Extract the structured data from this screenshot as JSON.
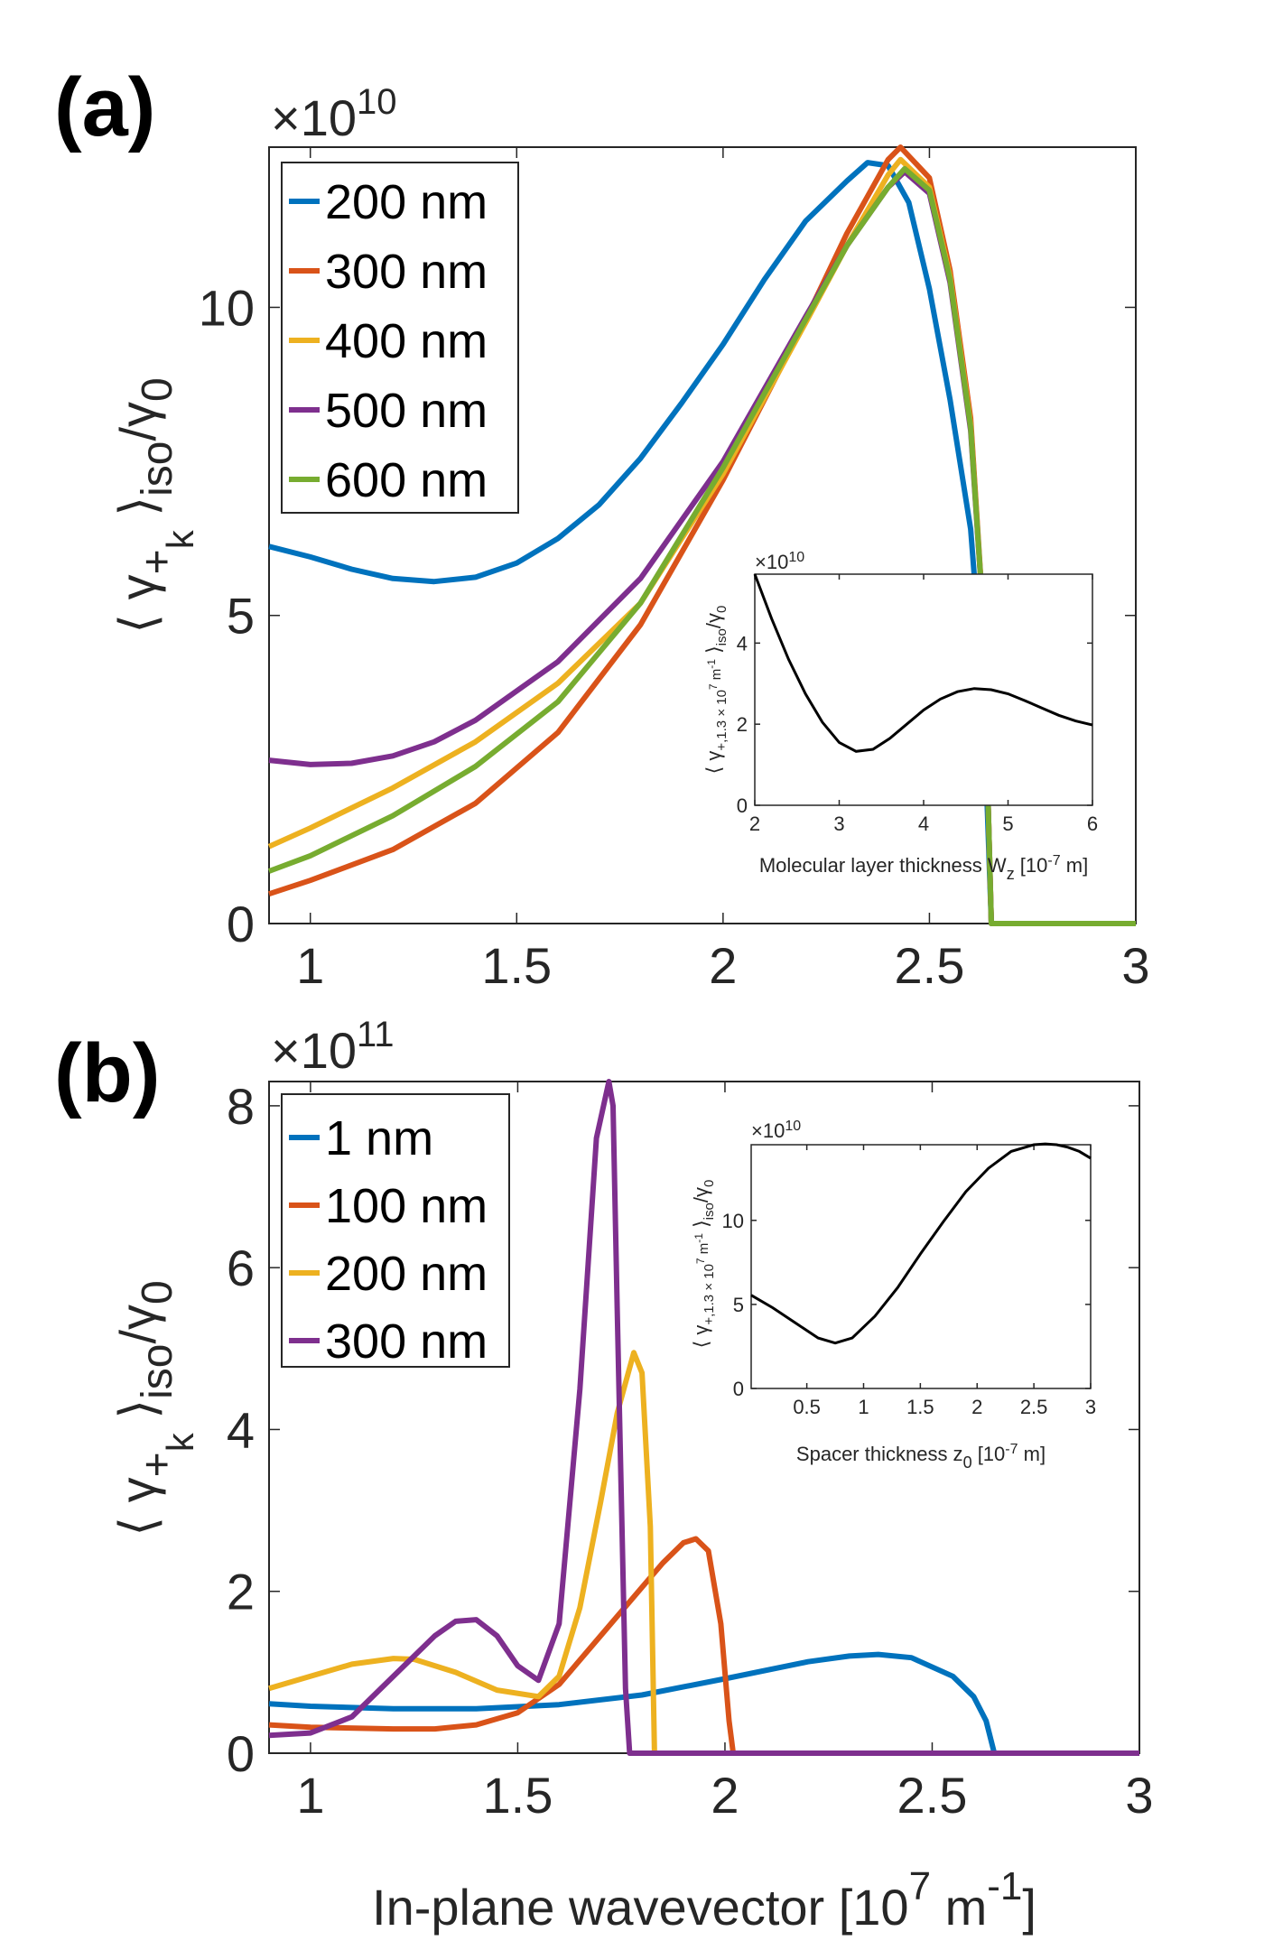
{
  "xlabel": "In-plane wavevector [10^7 m^-1]",
  "chart_data": [
    {
      "panel": "(a)",
      "type": "line",
      "ylabel": "⟨γ+k⟩iso/γ0",
      "y_exponent": "×10^10",
      "xlim": [
        0.9,
        3.0
      ],
      "ylim": [
        0,
        12.6
      ],
      "xticks": [
        "1",
        "1.5",
        "2",
        "2.5",
        "3"
      ],
      "yticks": [
        "0",
        "5",
        "10"
      ],
      "legend_position": "top-left",
      "series": [
        {
          "name": "200 nm",
          "color": "#0072BD",
          "x": [
            0.9,
            1.0,
            1.1,
            1.2,
            1.3,
            1.4,
            1.5,
            1.6,
            1.7,
            1.8,
            1.9,
            2.0,
            2.1,
            2.2,
            2.3,
            2.35,
            2.4,
            2.45,
            2.5,
            2.55,
            2.6,
            2.63,
            2.65,
            3.0
          ],
          "y": [
            6.12,
            5.95,
            5.75,
            5.6,
            5.55,
            5.62,
            5.85,
            6.25,
            6.8,
            7.55,
            8.45,
            9.4,
            10.45,
            11.4,
            12.05,
            12.35,
            12.3,
            11.7,
            10.3,
            8.5,
            6.4,
            3.8,
            0.0,
            0.0
          ]
        },
        {
          "name": "300 nm",
          "color": "#D95319",
          "x": [
            0.9,
            1.0,
            1.2,
            1.4,
            1.6,
            1.8,
            2.0,
            2.2,
            2.3,
            2.4,
            2.43,
            2.5,
            2.55,
            2.6,
            2.63,
            2.65,
            3.0
          ],
          "y": [
            0.48,
            0.7,
            1.2,
            1.95,
            3.1,
            4.85,
            7.2,
            9.8,
            11.2,
            12.4,
            12.6,
            12.1,
            10.6,
            8.2,
            5.0,
            0.0,
            0.0
          ]
        },
        {
          "name": "400 nm",
          "color": "#EDB120",
          "x": [
            0.9,
            1.0,
            1.2,
            1.4,
            1.6,
            1.8,
            2.0,
            2.2,
            2.3,
            2.4,
            2.43,
            2.5,
            2.55,
            2.6,
            2.63,
            2.65,
            3.0
          ],
          "y": [
            1.25,
            1.55,
            2.2,
            2.95,
            3.9,
            5.2,
            7.3,
            9.75,
            11.0,
            12.15,
            12.4,
            11.95,
            10.5,
            8.1,
            5.0,
            0.0,
            0.0
          ]
        },
        {
          "name": "500 nm",
          "color": "#7E2F8E",
          "x": [
            0.9,
            1.0,
            1.1,
            1.2,
            1.3,
            1.4,
            1.6,
            1.8,
            2.0,
            2.2,
            2.3,
            2.4,
            2.44,
            2.5,
            2.55,
            2.6,
            2.63,
            2.65,
            3.0
          ],
          "y": [
            2.65,
            2.58,
            2.6,
            2.72,
            2.95,
            3.3,
            4.25,
            5.6,
            7.5,
            9.85,
            11.0,
            11.95,
            12.2,
            11.85,
            10.4,
            8.0,
            5.0,
            0.0,
            0.0
          ]
        },
        {
          "name": "600 nm",
          "color": "#77AC30",
          "x": [
            0.9,
            1.0,
            1.2,
            1.4,
            1.6,
            1.8,
            2.0,
            2.2,
            2.3,
            2.4,
            2.44,
            2.5,
            2.55,
            2.6,
            2.63,
            2.65,
            3.0
          ],
          "y": [
            0.85,
            1.1,
            1.75,
            2.55,
            3.6,
            5.2,
            7.4,
            9.8,
            11.0,
            11.95,
            12.25,
            11.9,
            10.45,
            8.05,
            5.0,
            0.0,
            0.0
          ]
        }
      ],
      "inset": {
        "type": "line",
        "xlabel": "Molecular layer thickness W_z [10^-7 m]",
        "ylabel": "⟨γ+,1.3×10^7 m^-1⟩iso/γ0",
        "y_exponent": "×10^10",
        "xlim": [
          2,
          6
        ],
        "ylim": [
          0,
          5.7
        ],
        "xticks": [
          "2",
          "3",
          "4",
          "5",
          "6"
        ],
        "yticks": [
          "0",
          "2",
          "4"
        ],
        "color": "#000000",
        "x": [
          2.0,
          2.2,
          2.4,
          2.6,
          2.8,
          3.0,
          3.2,
          3.4,
          3.6,
          3.8,
          4.0,
          4.2,
          4.4,
          4.6,
          4.8,
          5.0,
          5.2,
          5.4,
          5.6,
          5.8,
          6.0
        ],
        "y": [
          5.7,
          4.6,
          3.6,
          2.75,
          2.05,
          1.55,
          1.33,
          1.38,
          1.65,
          2.0,
          2.35,
          2.62,
          2.8,
          2.88,
          2.85,
          2.75,
          2.58,
          2.4,
          2.22,
          2.08,
          1.98
        ]
      }
    },
    {
      "panel": "(b)",
      "type": "line",
      "ylabel": "⟨γ+k⟩iso/γ0",
      "y_exponent": "×10^11",
      "xlim": [
        0.9,
        3.0
      ],
      "ylim": [
        0,
        8.3
      ],
      "xticks": [
        "1",
        "1.5",
        "2",
        "2.5",
        "3"
      ],
      "yticks": [
        "0",
        "2",
        "4",
        "6",
        "8"
      ],
      "legend_position": "top-left",
      "series": [
        {
          "name": "1 nm",
          "color": "#0072BD",
          "x": [
            0.9,
            1.0,
            1.2,
            1.4,
            1.6,
            1.8,
            2.0,
            2.2,
            2.3,
            2.37,
            2.45,
            2.55,
            2.6,
            2.63,
            2.65,
            3.0
          ],
          "y": [
            0.61,
            0.58,
            0.55,
            0.55,
            0.6,
            0.72,
            0.92,
            1.13,
            1.2,
            1.22,
            1.18,
            0.95,
            0.7,
            0.4,
            0.0,
            0.0
          ]
        },
        {
          "name": "100 nm",
          "color": "#D95319",
          "x": [
            0.9,
            1.0,
            1.2,
            1.3,
            1.4,
            1.5,
            1.6,
            1.7,
            1.8,
            1.85,
            1.9,
            1.93,
            1.96,
            1.99,
            2.01,
            2.02,
            3.0
          ],
          "y": [
            0.35,
            0.32,
            0.3,
            0.3,
            0.35,
            0.5,
            0.85,
            1.45,
            2.05,
            2.35,
            2.6,
            2.65,
            2.5,
            1.6,
            0.4,
            0.0,
            0.0
          ]
        },
        {
          "name": "200 nm",
          "color": "#EDB120",
          "x": [
            0.9,
            1.0,
            1.1,
            1.2,
            1.25,
            1.35,
            1.45,
            1.55,
            1.6,
            1.65,
            1.7,
            1.74,
            1.78,
            1.8,
            1.82,
            1.83,
            3.0
          ],
          "y": [
            0.8,
            0.95,
            1.1,
            1.17,
            1.16,
            1.0,
            0.78,
            0.7,
            0.95,
            1.8,
            3.1,
            4.2,
            4.95,
            4.7,
            2.8,
            0.0,
            0.0
          ]
        },
        {
          "name": "300 nm",
          "color": "#7E2F8E",
          "x": [
            0.9,
            1.0,
            1.1,
            1.2,
            1.3,
            1.35,
            1.4,
            1.45,
            1.5,
            1.55,
            1.6,
            1.65,
            1.69,
            1.72,
            1.73,
            1.74,
            1.76,
            1.77,
            3.0
          ],
          "y": [
            0.22,
            0.25,
            0.45,
            0.95,
            1.45,
            1.63,
            1.65,
            1.45,
            1.08,
            0.9,
            1.6,
            4.5,
            7.6,
            8.3,
            8.0,
            5.5,
            0.8,
            0.0,
            0.0
          ]
        }
      ],
      "inset": {
        "type": "line",
        "xlabel": "Spacer thickness z_0 [10^-7 m]",
        "ylabel": "⟨γ+,1.3×10^7 m^-1⟩iso/γ0",
        "y_exponent": "×10^10",
        "xlim": [
          0.01,
          3.0
        ],
        "ylim": [
          0,
          14.5
        ],
        "xticks": [
          "0.5",
          "1",
          "1.5",
          "2",
          "2.5",
          "3"
        ],
        "yticks": [
          "0",
          "5",
          "10"
        ],
        "color": "#000000",
        "x": [
          0.01,
          0.2,
          0.4,
          0.6,
          0.75,
          0.9,
          1.1,
          1.3,
          1.5,
          1.7,
          1.9,
          2.1,
          2.3,
          2.5,
          2.6,
          2.7,
          2.8,
          2.9,
          3.0
        ],
        "y": [
          5.55,
          4.8,
          3.9,
          3.0,
          2.7,
          3.0,
          4.3,
          6.0,
          8.0,
          9.9,
          11.7,
          13.1,
          14.1,
          14.5,
          14.55,
          14.5,
          14.35,
          14.1,
          13.7
        ]
      }
    }
  ]
}
